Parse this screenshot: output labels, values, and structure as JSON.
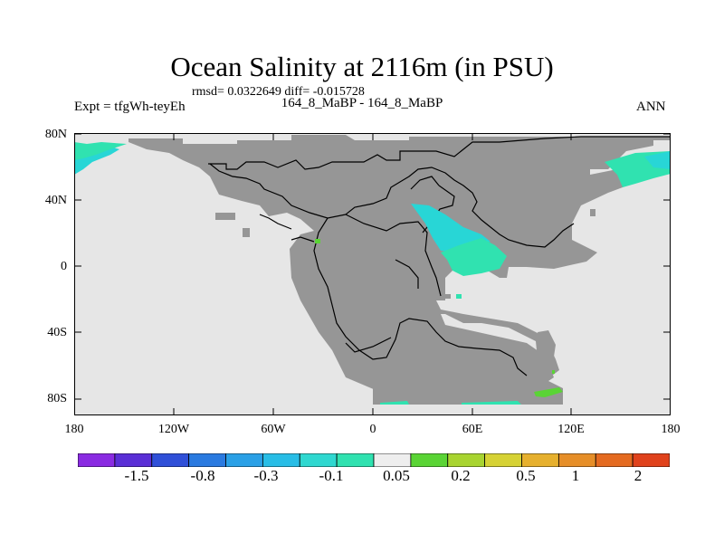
{
  "title": "Ocean Salinity at 2116m (in PSU)",
  "stats": "rmsd= 0.0322649 diff= -0.015728",
  "expt_label": "Expt = tfgWh-teyEh",
  "period_label": "164_8_MaBP - 164_8_MaBP",
  "season_label": "ANN",
  "lat_labels": [
    "80N",
    "40N",
    "0",
    "40S",
    "80S"
  ],
  "lon_labels": [
    "180",
    "120W",
    "60W",
    "0",
    "60E",
    "120E",
    "180"
  ],
  "colorbar": {
    "colors": [
      "#8a2be2",
      "#5a2fd6",
      "#3050d8",
      "#2a7ae0",
      "#2aa0e6",
      "#28bde6",
      "#2fd8d0",
      "#30e2b0",
      "#eeeeee",
      "#5ad435",
      "#a8d430",
      "#d6d234",
      "#e6b02e",
      "#e68e28",
      "#e46a20",
      "#e0421c"
    ],
    "labels": [
      "-1.5",
      "-0.8",
      "-0.3",
      "-0.1",
      "0.05",
      "0.2",
      "0.5",
      "1",
      "2"
    ]
  },
  "colors": {
    "ocean": "#e6e6e6",
    "land": "#969696",
    "fill_low": "#30e2b0",
    "fill_mid": "#28d6d6",
    "fill_pos": "#5ad435"
  }
}
